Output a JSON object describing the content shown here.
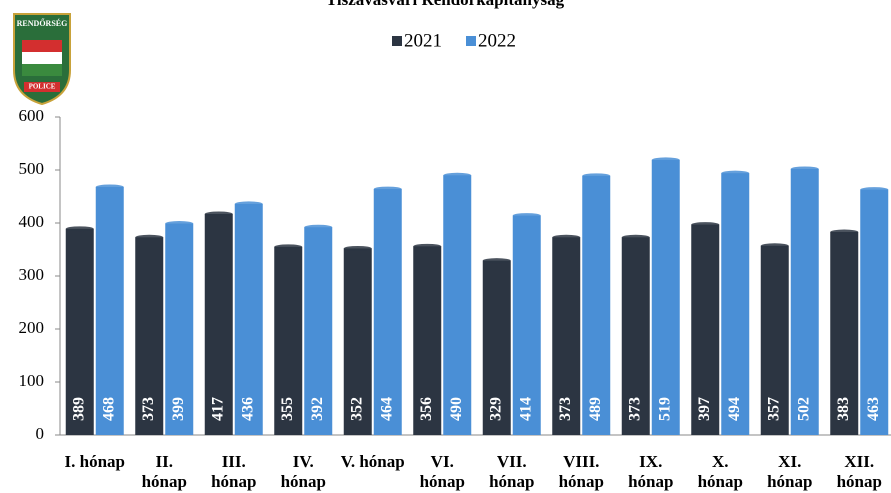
{
  "chart_data": {
    "type": "bar",
    "title": "Tiszavasvári Rendőrkapitányság",
    "categories": [
      "I. hónap",
      "II. hónap",
      "III. hónap",
      "IV. hónap",
      "V. hónap",
      "VI. hónap",
      "VII. hónap",
      "VIII. hónap",
      "IX. hónap",
      "X. hónap",
      "XI. hónap",
      "XII. hónap"
    ],
    "series": [
      {
        "name": "2021",
        "color": "#2c3542",
        "values": [
          389,
          373,
          417,
          355,
          352,
          356,
          329,
          373,
          373,
          397,
          357,
          383
        ]
      },
      {
        "name": "2022",
        "color": "#4a8fd6",
        "values": [
          468,
          399,
          436,
          392,
          464,
          490,
          414,
          489,
          519,
          494,
          502,
          463
        ]
      }
    ],
    "ylim": [
      0,
      600
    ],
    "yticks": [
      0,
      100,
      200,
      300,
      400,
      500,
      600
    ],
    "badge_text": [
      "RENDŐRSÉG",
      "POLICE"
    ]
  }
}
